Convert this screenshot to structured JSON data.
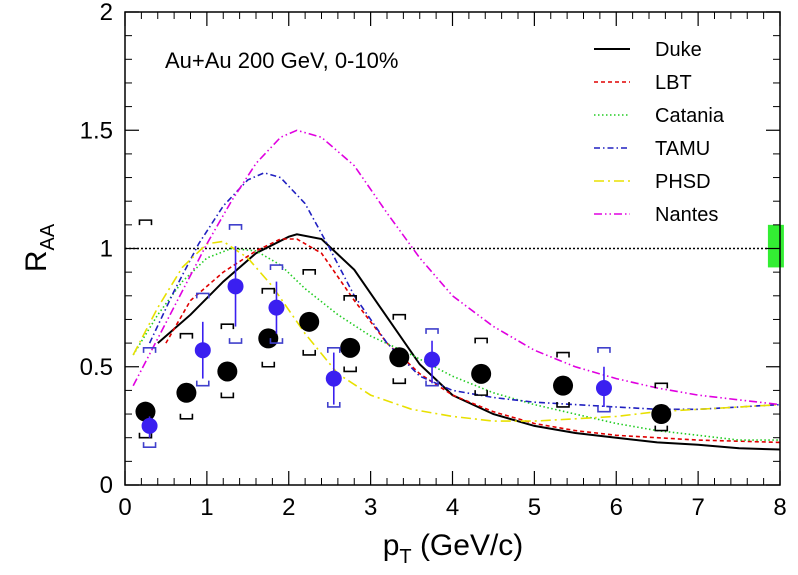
{
  "chart_data": {
    "type": "line",
    "annotation": "Au+Au 200 GeV, 0-10%",
    "xlabel": "p_T (GeV/c)",
    "ylabel": "R_AA",
    "xlim": [
      0,
      8
    ],
    "ylim": [
      0,
      2
    ],
    "x_ticks": [
      "0",
      "1",
      "2",
      "3",
      "4",
      "5",
      "6",
      "7",
      "8"
    ],
    "y_ticks": [
      "0",
      "0.5",
      "1",
      "1.5",
      "2"
    ],
    "reference_line_y": 1,
    "legend_position": "top-right",
    "colors": {
      "Duke": "#000000",
      "LBT": "#e00000",
      "Catania": "#22cc22",
      "TAMU": "#2020c0",
      "PHSD": "#e8e000",
      "Nantes": "#e000e0",
      "black_points": "#000000",
      "blue_points": "#3a1ff0",
      "blue_brackets": "#4040cc",
      "norm_box": "#33ee33"
    },
    "series": [
      {
        "name": "Duke",
        "style": "solid",
        "x": [
          0.4,
          0.8,
          1.2,
          1.6,
          2.0,
          2.1,
          2.4,
          2.8,
          3.2,
          3.6,
          4.0,
          4.5,
          5.0,
          5.5,
          6.0,
          6.5,
          7.0,
          7.5,
          8.0
        ],
        "y": [
          0.6,
          0.72,
          0.86,
          0.98,
          1.05,
          1.06,
          1.04,
          0.91,
          0.71,
          0.51,
          0.38,
          0.3,
          0.25,
          0.22,
          0.2,
          0.18,
          0.17,
          0.155,
          0.15
        ]
      },
      {
        "name": "LBT",
        "style": "dashed",
        "x": [
          0.5,
          0.8,
          1.2,
          1.6,
          1.9,
          2.1,
          2.4,
          2.8,
          3.2,
          3.6,
          4.0,
          4.5,
          5.0,
          5.5,
          6.0,
          6.5,
          7.0,
          7.5,
          8.0
        ],
        "y": [
          0.6,
          0.78,
          0.9,
          0.99,
          1.04,
          1.04,
          0.98,
          0.78,
          0.6,
          0.47,
          0.38,
          0.31,
          0.26,
          0.23,
          0.21,
          0.2,
          0.19,
          0.185,
          0.18
        ]
      },
      {
        "name": "Catania",
        "style": "dotted",
        "x": [
          0.1,
          0.4,
          0.7,
          1.0,
          1.3,
          1.6,
          1.9,
          2.2,
          2.6,
          3.0,
          3.5,
          4.0,
          4.5,
          5.0,
          5.5,
          6.0,
          6.5,
          7.0,
          7.5,
          8.0
        ],
        "y": [
          0.55,
          0.72,
          0.86,
          0.96,
          1.0,
          0.99,
          0.93,
          0.83,
          0.72,
          0.63,
          0.55,
          0.46,
          0.39,
          0.34,
          0.3,
          0.26,
          0.23,
          0.21,
          0.19,
          0.19
        ]
      },
      {
        "name": "TAMU",
        "style": "dash-dot",
        "x": [
          0.3,
          0.6,
          0.9,
          1.2,
          1.5,
          1.7,
          1.9,
          2.2,
          2.5,
          2.8,
          3.2,
          3.6,
          4.0,
          4.5,
          5.0,
          5.5,
          6.0,
          6.5,
          7.0,
          7.5,
          8.0
        ],
        "y": [
          0.6,
          0.82,
          1.02,
          1.18,
          1.29,
          1.32,
          1.3,
          1.19,
          1.0,
          0.8,
          0.6,
          0.46,
          0.4,
          0.37,
          0.35,
          0.34,
          0.33,
          0.32,
          0.32,
          0.33,
          0.34
        ]
      },
      {
        "name": "PHSD",
        "style": "long-dash-dot",
        "x": [
          0.1,
          0.4,
          0.7,
          1.0,
          1.2,
          1.5,
          1.8,
          2.2,
          2.6,
          3.0,
          3.5,
          4.0,
          4.5,
          5.0,
          5.5,
          6.0,
          6.5,
          7.0,
          7.5,
          8.0
        ],
        "y": [
          0.55,
          0.75,
          0.92,
          1.02,
          1.03,
          0.96,
          0.84,
          0.64,
          0.47,
          0.38,
          0.32,
          0.29,
          0.27,
          0.27,
          0.28,
          0.29,
          0.31,
          0.32,
          0.33,
          0.34
        ]
      },
      {
        "name": "Nantes",
        "style": "dash-dot-dot",
        "x": [
          0.1,
          0.4,
          0.7,
          1.0,
          1.3,
          1.6,
          1.9,
          2.1,
          2.4,
          2.8,
          3.2,
          3.6,
          4.0,
          4.5,
          5.0,
          5.5,
          6.0,
          6.5,
          7.0,
          7.5,
          8.0
        ],
        "y": [
          0.42,
          0.62,
          0.82,
          1.02,
          1.2,
          1.36,
          1.47,
          1.5,
          1.47,
          1.35,
          1.15,
          0.96,
          0.8,
          0.67,
          0.57,
          0.5,
          0.45,
          0.41,
          0.38,
          0.36,
          0.34
        ]
      }
    ],
    "black_points": [
      {
        "x": 0.25,
        "y": 0.31,
        "sys_lo": 0.2,
        "sys_hi": 1.12
      },
      {
        "x": 0.75,
        "y": 0.39,
        "sys_lo": 0.28,
        "sys_hi": 0.64
      },
      {
        "x": 1.25,
        "y": 0.48,
        "sys_lo": 0.37,
        "sys_hi": 0.68
      },
      {
        "x": 1.75,
        "y": 0.62,
        "sys_lo": 0.5,
        "sys_hi": 0.83
      },
      {
        "x": 2.25,
        "y": 0.69,
        "sys_lo": 0.55,
        "sys_hi": 0.91
      },
      {
        "x": 2.75,
        "y": 0.58,
        "sys_lo": 0.48,
        "sys_hi": 0.8
      },
      {
        "x": 3.35,
        "y": 0.54,
        "sys_lo": 0.43,
        "sys_hi": 0.72
      },
      {
        "x": 4.35,
        "y": 0.47,
        "sys_lo": 0.38,
        "sys_hi": 0.62
      },
      {
        "x": 5.35,
        "y": 0.42,
        "sys_lo": 0.33,
        "sys_hi": 0.56
      },
      {
        "x": 6.55,
        "y": 0.3,
        "sys_lo": 0.23,
        "sys_hi": 0.43
      }
    ],
    "blue_points": [
      {
        "x": 0.3,
        "y": 0.25,
        "err_lo": 0.2,
        "err_hi": 0.29,
        "sys_lo": 0.16,
        "sys_hi": 0.58
      },
      {
        "x": 0.95,
        "y": 0.57,
        "err_lo": 0.45,
        "err_hi": 0.69,
        "sys_lo": 0.42,
        "sys_hi": 0.81
      },
      {
        "x": 1.35,
        "y": 0.84,
        "err_lo": 0.67,
        "err_hi": 1.01,
        "sys_lo": 0.6,
        "sys_hi": 1.1
      },
      {
        "x": 1.85,
        "y": 0.75,
        "err_lo": 0.64,
        "err_hi": 0.86,
        "sys_lo": 0.6,
        "sys_hi": 0.93
      },
      {
        "x": 2.55,
        "y": 0.45,
        "err_lo": 0.34,
        "err_hi": 0.56,
        "sys_lo": 0.33,
        "sys_hi": 0.58
      },
      {
        "x": 3.75,
        "y": 0.53,
        "err_lo": 0.43,
        "err_hi": 0.61,
        "sys_lo": 0.42,
        "sys_hi": 0.66
      },
      {
        "x": 5.85,
        "y": 0.41,
        "err_lo": 0.33,
        "err_hi": 0.5,
        "sys_lo": 0.31,
        "sys_hi": 0.58
      }
    ],
    "normalization_box": {
      "x": 7.95,
      "y_lo": 0.92,
      "y_hi": 1.1
    }
  }
}
